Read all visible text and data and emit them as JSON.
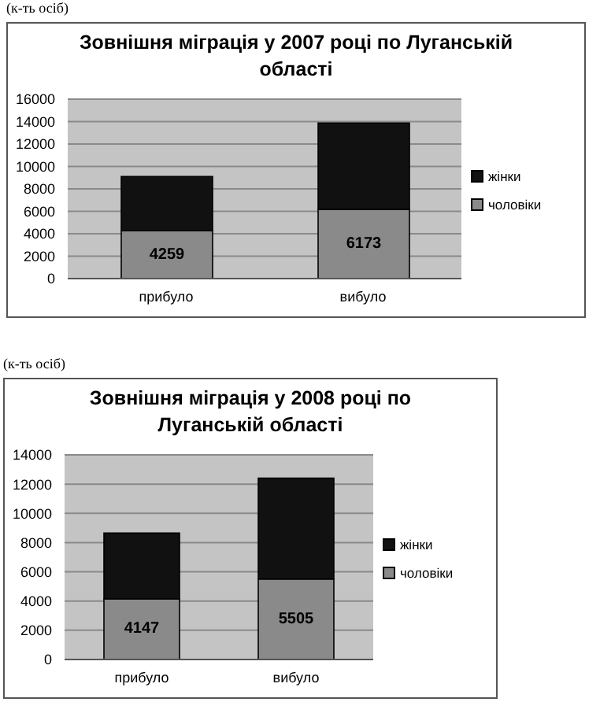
{
  "chart_data": [
    {
      "type": "bar",
      "title": "Зовнішня міграція у 2007 році по Луганській області",
      "ylabel": "(к-ть осіб)",
      "categories": [
        "прибуло",
        "вибуло"
      ],
      "stacked": true,
      "ylim": [
        0,
        16000
      ],
      "yticks": [
        0,
        2000,
        4000,
        6000,
        8000,
        10000,
        12000,
        14000,
        16000
      ],
      "grid": "y",
      "legend": "right",
      "series": [
        {
          "name": "чоловіки",
          "color": "#8a8a8a",
          "values": [
            4259,
            6173
          ],
          "value_labels": [
            "4259",
            "6173"
          ]
        },
        {
          "name": "жінки",
          "color": "#111111",
          "values": [
            4850,
            7700
          ]
        }
      ]
    },
    {
      "type": "bar",
      "title": "Зовнішня міграція у 2008 році по Луганській області",
      "ylabel": "(к-ть осіб)",
      "categories": [
        "прибуло",
        "вибуло"
      ],
      "stacked": true,
      "ylim": [
        0,
        14000
      ],
      "yticks": [
        0,
        2000,
        4000,
        6000,
        8000,
        10000,
        12000,
        14000
      ],
      "grid": "y",
      "legend": "right",
      "series": [
        {
          "name": "чоловіки",
          "color": "#8a8a8a",
          "values": [
            4147,
            5505
          ],
          "value_labels": [
            "4147",
            "5505"
          ]
        },
        {
          "name": "жінки",
          "color": "#111111",
          "values": [
            4500,
            6900
          ]
        }
      ]
    }
  ]
}
